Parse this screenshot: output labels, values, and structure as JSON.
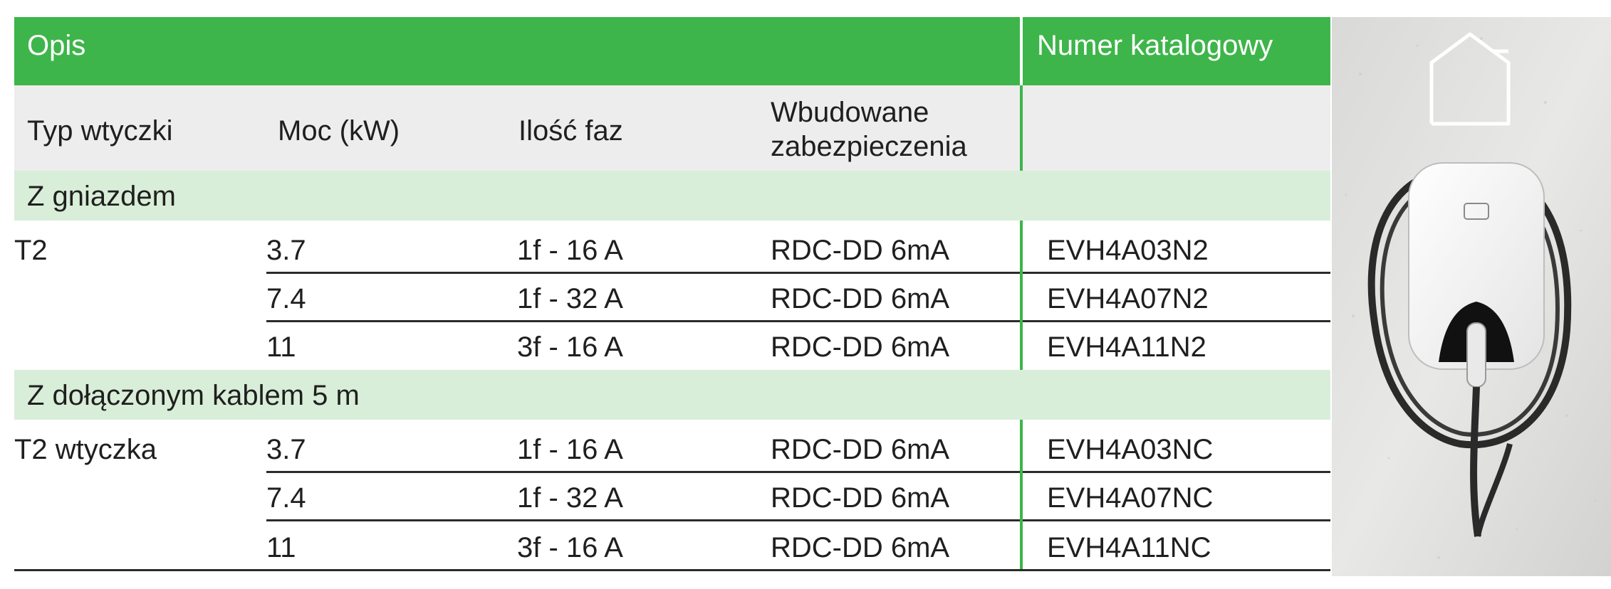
{
  "header": {
    "description": "Opis",
    "catalog_number": "Numer katalogowy"
  },
  "columns": {
    "plug_type": "Typ wtyczki",
    "power": "Moc (kW)",
    "phases": "Ilość faz",
    "protection": "Wbudowane zabezpieczenia"
  },
  "sections": [
    {
      "title": "Z gniazdem",
      "plug": "T2",
      "rows": [
        {
          "power": "3.7",
          "phases": "1f - 16 A",
          "protection": "RDC-DD 6mA",
          "catalog": "EVH4A03N2"
        },
        {
          "power": "7.4",
          "phases": "1f - 32 A",
          "protection": "RDC-DD 6mA",
          "catalog": "EVH4A07N2"
        },
        {
          "power": "11",
          "phases": "3f - 16 A",
          "protection": "RDC-DD 6mA",
          "catalog": "EVH4A11N2"
        }
      ]
    },
    {
      "title": "Z dołączonym kablem 5 m",
      "plug": "T2 wtyczka",
      "rows": [
        {
          "power": "3.7",
          "phases": "1f - 16 A",
          "protection": "RDC-DD 6mA",
          "catalog": "EVH4A03NC"
        },
        {
          "power": "7.4",
          "phases": "1f - 32 A",
          "protection": "RDC-DD 6mA",
          "catalog": "EVH4A07NC"
        },
        {
          "power": "11",
          "phases": "3f - 16 A",
          "protection": "RDC-DD 6mA",
          "catalog": "EVH4A11NC"
        }
      ]
    }
  ],
  "colors": {
    "header_green": "#3db54a",
    "section_green": "#d9eed9",
    "subheader_gray": "#ededee"
  },
  "icons": {
    "home": "home-icon",
    "product": "ev-charger-image"
  }
}
